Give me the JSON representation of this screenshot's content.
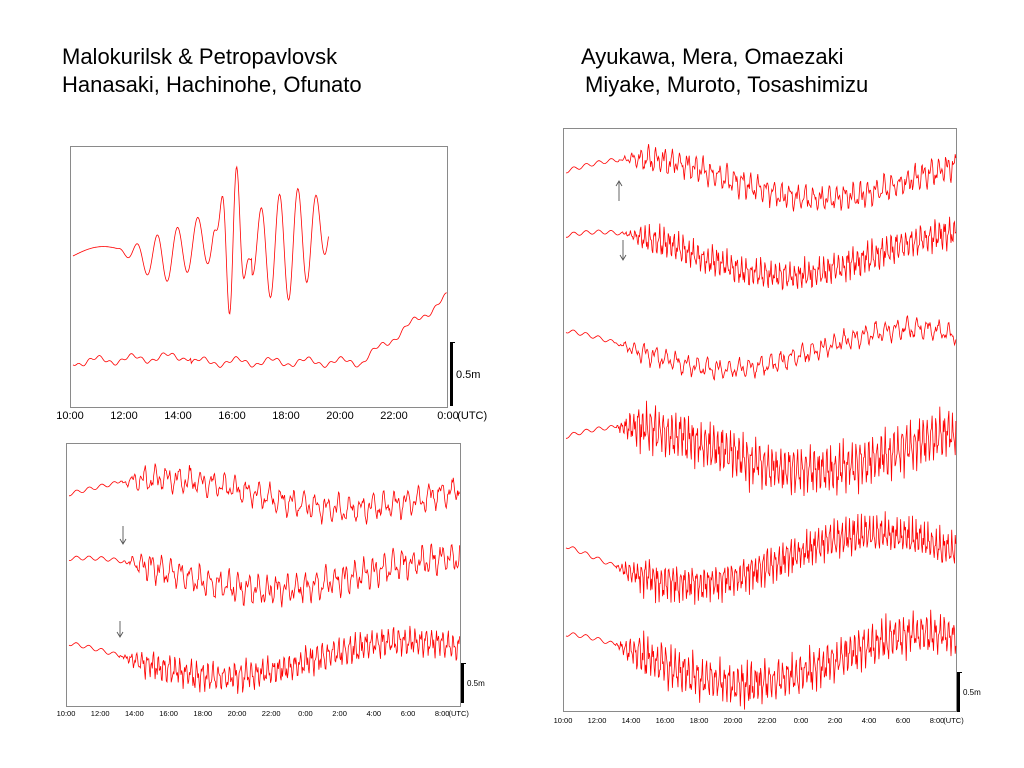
{
  "titles": {
    "left": [
      "Malokurilsk & Petropavlovsk",
      "Hanasaki, Hachinohe, Ofunato"
    ],
    "right": [
      "Ayukawa, Mera, Omaezaki",
      "Miyake, Muroto, Tosashimizu"
    ]
  },
  "colors": {
    "trace": "#ff0000",
    "frame": "#8a8a8a",
    "arrow": "#555555"
  },
  "chart_data": [
    {
      "type": "line",
      "title": "Malokurilsk & Petropavlovsk",
      "x_tick_labels": [
        "10:00",
        "12:00",
        "14:00",
        "16:00",
        "18:00",
        "20:00",
        "22:00",
        "0:00"
      ],
      "x_unit": "(UTC)",
      "scale_bar": "0.5m",
      "series": [
        {
          "name": "Malokurilsk",
          "start": "10:00",
          "end": "19:30",
          "amplitude_m": 0.6
        },
        {
          "name": "Petropavlovsk",
          "start": "10:00",
          "end": "0:30",
          "amplitude_m": 0.08
        }
      ]
    },
    {
      "type": "line",
      "title": "Hanasaki, Hachinohe, Ofunato",
      "x_tick_labels": [
        "10:00",
        "12:00",
        "14:00",
        "16:00",
        "18:00",
        "20:00",
        "22:00",
        "0:00",
        "2:00",
        "4:00",
        "6:00",
        "8:00"
      ],
      "x_unit": "(UTC)",
      "scale_bar": "0.5m",
      "series": [
        {
          "name": "Hanasaki",
          "arrival": null,
          "amplitude_m": 0.25
        },
        {
          "name": "Hachinohe",
          "arrival": "13:00",
          "amplitude_m": 0.3
        },
        {
          "name": "Ofunato",
          "arrival": "13:00",
          "amplitude_m": 0.25
        }
      ]
    },
    {
      "type": "line",
      "title": "Ayukawa, Mera, Omaezaki / Miyake, Muroto, Tosashimizu",
      "x_tick_labels": [
        "10:00",
        "12:00",
        "14:00",
        "16:00",
        "18:00",
        "20:00",
        "22:00",
        "0:00",
        "2:00",
        "4:00",
        "6:00",
        "8:00"
      ],
      "x_unit": "(UTC)",
      "scale_bar": "0.5m",
      "series": [
        {
          "name": "Ayukawa",
          "arrival": "13:30",
          "amplitude_m": 0.3
        },
        {
          "name": "Mera",
          "arrival": "13:30",
          "amplitude_m": 0.3
        },
        {
          "name": "Omaezaki",
          "arrival": null,
          "amplitude_m": 0.2
        },
        {
          "name": "Miyake",
          "arrival": null,
          "amplitude_m": 0.5
        },
        {
          "name": "Muroto",
          "arrival": null,
          "amplitude_m": 0.35
        },
        {
          "name": "Tosashimizu",
          "arrival": null,
          "amplitude_m": 0.3
        }
      ]
    }
  ]
}
